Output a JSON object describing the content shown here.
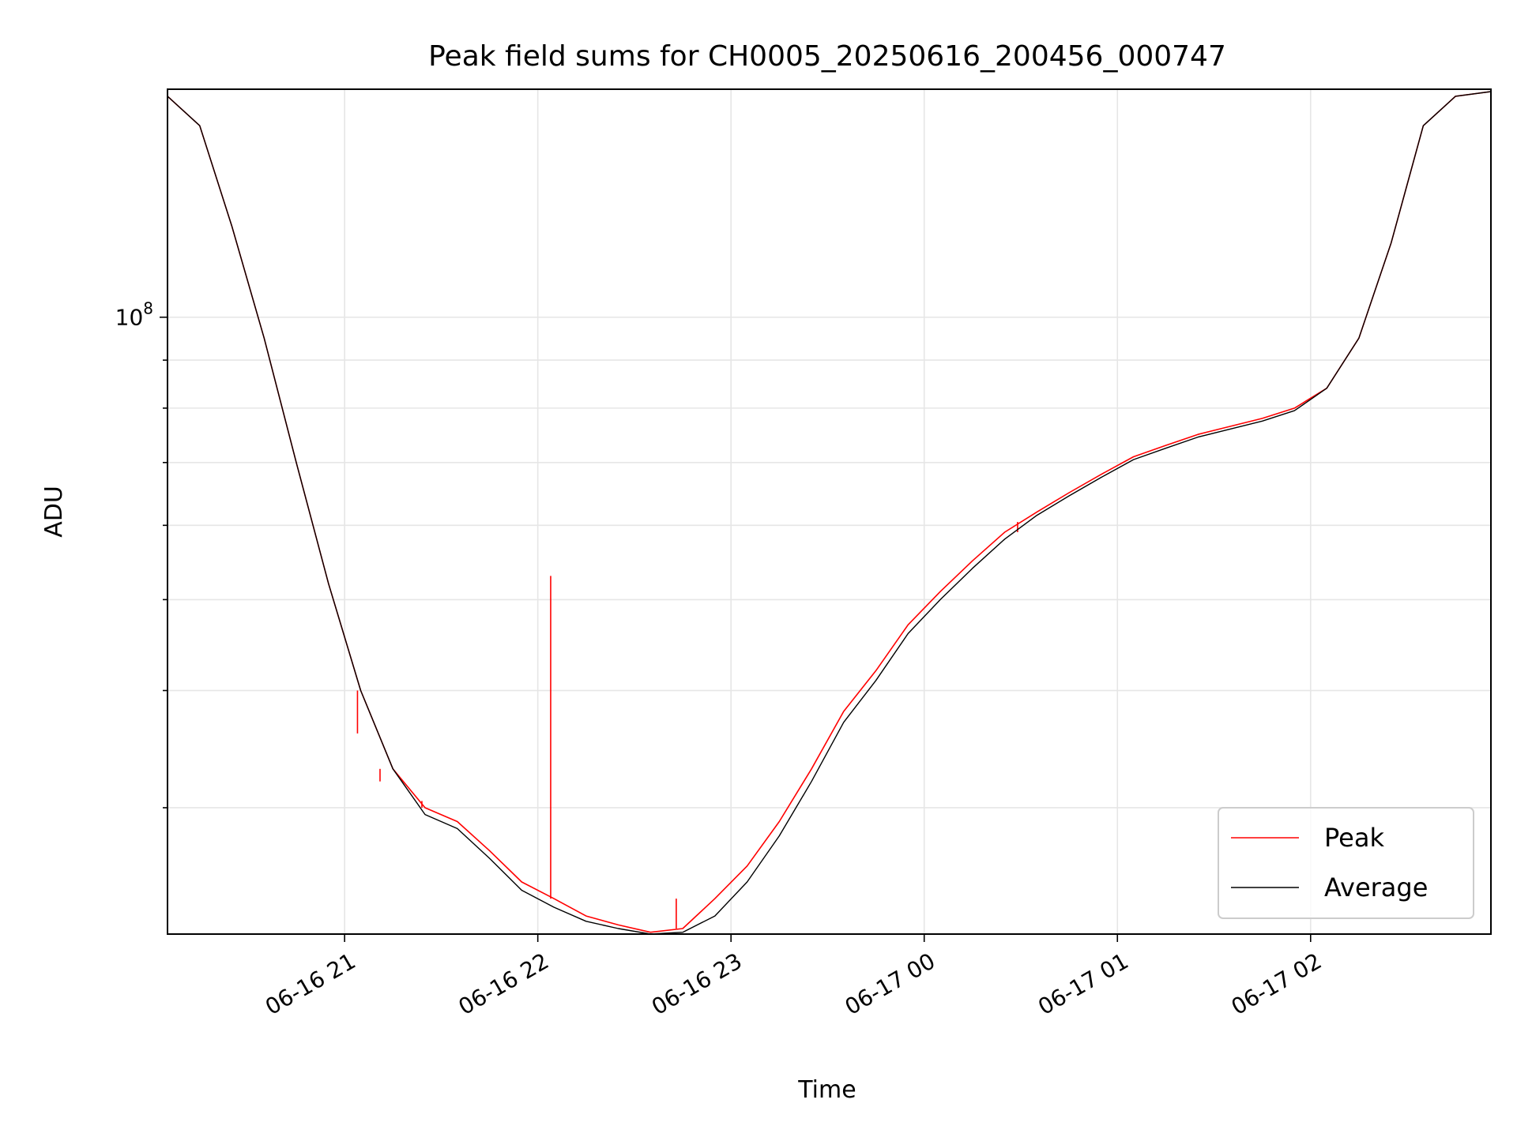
{
  "chart_data": {
    "type": "line",
    "title": "Peak field sums for CH0005_20250616_200456_000747",
    "xlabel": "Time",
    "ylabel": "ADU",
    "y_scale": "log",
    "ylim": [
      22000000,
      175000000
    ],
    "xlim": [
      "06-16 20:05",
      "06-17 02:56"
    ],
    "grid": true,
    "legend_position": "lower-right",
    "x_ticks": [
      "06-16 21",
      "06-16 22",
      "06-16 23",
      "06-17 00",
      "06-17 01",
      "06-17 02"
    ],
    "y_major_ticks": [
      {
        "value": 100000000,
        "base": "10",
        "exp": "8"
      }
    ],
    "y_minor_ticks": [
      30000000,
      40000000,
      50000000,
      60000000,
      70000000,
      80000000,
      90000000,
      200000000
    ],
    "series": [
      {
        "name": "Peak",
        "color": "#ff0000",
        "points": [
          [
            "06-16 20:05",
            172000000
          ],
          [
            "06-16 20:15",
            160000000
          ],
          [
            "06-16 20:25",
            125000000
          ],
          [
            "06-16 20:35",
            95000000
          ],
          [
            "06-16 20:45",
            70000000
          ],
          [
            "06-16 20:55",
            52000000
          ],
          [
            "06-16 21:05",
            40000000
          ],
          [
            "06-16 21:15",
            33000000
          ],
          [
            "06-16 21:25",
            30000000
          ],
          [
            "06-16 21:35",
            29000000
          ],
          [
            "06-16 21:45",
            27000000
          ],
          [
            "06-16 21:55",
            25000000
          ],
          [
            "06-16 22:05",
            24000000
          ],
          [
            "06-16 22:15",
            23000000
          ],
          [
            "06-16 22:25",
            22500000
          ],
          [
            "06-16 22:35",
            22100000
          ],
          [
            "06-16 22:45",
            22300000
          ],
          [
            "06-16 22:55",
            24000000
          ],
          [
            "06-16 23:05",
            26000000
          ],
          [
            "06-16 23:15",
            29000000
          ],
          [
            "06-16 23:25",
            33000000
          ],
          [
            "06-16 23:35",
            38000000
          ],
          [
            "06-16 23:45",
            42000000
          ],
          [
            "06-16 23:55",
            47000000
          ],
          [
            "06-17 00:05",
            51000000
          ],
          [
            "06-17 00:15",
            55000000
          ],
          [
            "06-17 00:25",
            59000000
          ],
          [
            "06-17 00:35",
            62000000
          ],
          [
            "06-17 00:45",
            65000000
          ],
          [
            "06-17 00:55",
            68000000
          ],
          [
            "06-17 01:05",
            71000000
          ],
          [
            "06-17 01:15",
            73000000
          ],
          [
            "06-17 01:25",
            75000000
          ],
          [
            "06-17 01:35",
            76500000
          ],
          [
            "06-17 01:45",
            78000000
          ],
          [
            "06-17 01:55",
            80000000
          ],
          [
            "06-17 02:05",
            84000000
          ],
          [
            "06-17 02:15",
            95000000
          ],
          [
            "06-17 02:25",
            120000000
          ],
          [
            "06-17 02:35",
            160000000
          ],
          [
            "06-17 02:45",
            172000000
          ],
          [
            "06-17 02:56",
            174000000
          ]
        ],
        "spikes": [
          [
            "06-16 21:04",
            36000000
          ],
          [
            "06-16 21:11",
            32000000
          ],
          [
            "06-16 21:24",
            30500000
          ],
          [
            "06-16 21:47",
            27000000
          ],
          [
            "06-16 22:04",
            53000000
          ],
          [
            "06-16 22:43",
            24000000
          ],
          [
            "06-16 22:51",
            24000000
          ],
          [
            "06-17 00:29",
            60500000
          ]
        ]
      },
      {
        "name": "Average",
        "color": "#000000",
        "points": [
          [
            "06-16 20:05",
            172000000
          ],
          [
            "06-16 20:15",
            160000000
          ],
          [
            "06-16 20:25",
            125000000
          ],
          [
            "06-16 20:35",
            95000000
          ],
          [
            "06-16 20:45",
            70000000
          ],
          [
            "06-16 20:55",
            52000000
          ],
          [
            "06-16 21:05",
            40000000
          ],
          [
            "06-16 21:15",
            33000000
          ],
          [
            "06-16 21:25",
            29500000
          ],
          [
            "06-16 21:35",
            28500000
          ],
          [
            "06-16 21:45",
            26500000
          ],
          [
            "06-16 21:55",
            24500000
          ],
          [
            "06-16 22:05",
            23500000
          ],
          [
            "06-16 22:15",
            22700000
          ],
          [
            "06-16 22:25",
            22300000
          ],
          [
            "06-16 22:35",
            22000000
          ],
          [
            "06-16 22:45",
            22100000
          ],
          [
            "06-16 22:55",
            23000000
          ],
          [
            "06-16 23:05",
            25000000
          ],
          [
            "06-16 23:15",
            28000000
          ],
          [
            "06-16 23:25",
            32000000
          ],
          [
            "06-16 23:35",
            37000000
          ],
          [
            "06-16 23:45",
            41000000
          ],
          [
            "06-16 23:55",
            46000000
          ],
          [
            "06-17 00:05",
            50000000
          ],
          [
            "06-17 00:15",
            54000000
          ],
          [
            "06-17 00:25",
            58000000
          ],
          [
            "06-17 00:35",
            61500000
          ],
          [
            "06-17 00:45",
            64500000
          ],
          [
            "06-17 00:55",
            67500000
          ],
          [
            "06-17 01:05",
            70500000
          ],
          [
            "06-17 01:15",
            72500000
          ],
          [
            "06-17 01:25",
            74500000
          ],
          [
            "06-17 01:35",
            76000000
          ],
          [
            "06-17 01:45",
            77500000
          ],
          [
            "06-17 01:55",
            79500000
          ],
          [
            "06-17 02:05",
            84000000
          ],
          [
            "06-17 02:15",
            95000000
          ],
          [
            "06-17 02:25",
            120000000
          ],
          [
            "06-17 02:35",
            160000000
          ],
          [
            "06-17 02:45",
            172000000
          ],
          [
            "06-17 02:56",
            174000000
          ]
        ]
      }
    ]
  }
}
